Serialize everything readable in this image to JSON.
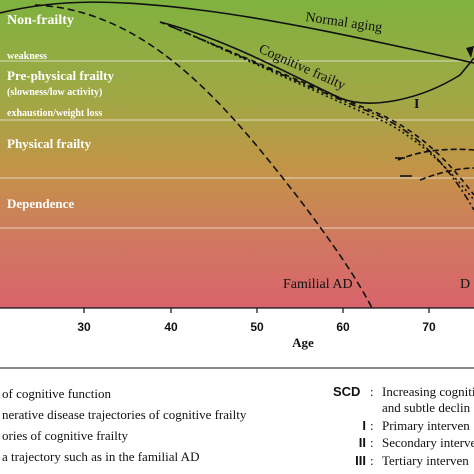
{
  "zones": {
    "non_frailty": "Non-frailty",
    "weakness": "weakness",
    "pre_physical_frailty": "Pre-physical frailty",
    "slowness": "(slowness/low activity)",
    "exhaustion": "exhaustion/weight loss",
    "physical_frailty": "Physical frailty",
    "dependence": "Dependence"
  },
  "curve_labels": {
    "normal_aging": "Normal aging",
    "cognitive_frailty": "Cognitive frailty",
    "familial_ad": "Familial AD",
    "roman_one": "I",
    "right_edge_d": "D"
  },
  "axis": {
    "title": "Age",
    "ticks": [
      "30",
      "40",
      "50",
      "60",
      "70"
    ]
  },
  "legend_left": [
    "of cognitive function",
    "nerative disease trajectories of cognitive frailty",
    "ories of cognitive frailty",
    "a trajectory such as in the familial AD"
  ],
  "legend_right": [
    {
      "key": "SCD",
      "sep": ":",
      "text": "Increasing cogniti"
    },
    {
      "key": "",
      "sep": "",
      "text": "and subtle declin"
    },
    {
      "key": "I",
      "sep": ":",
      "text": "Primary interven"
    },
    {
      "key": "II",
      "sep": ":",
      "text": "Secondary interve"
    },
    {
      "key": "III",
      "sep": ":",
      "text": "Tertiary interven"
    }
  ],
  "colors": {
    "top": "#86b541",
    "middle": "#c09a4b",
    "bottom": "#d8646a"
  }
}
